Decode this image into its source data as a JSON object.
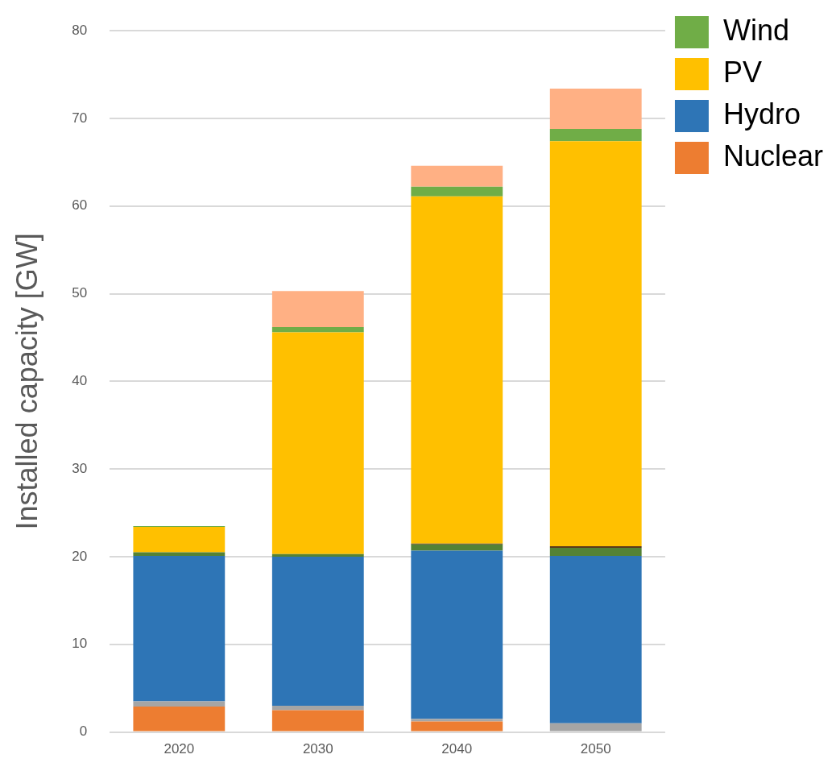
{
  "chart_data": {
    "type": "bar",
    "stacked": true,
    "ylabel": "Installed capacity [GW]",
    "categories": [
      "2020",
      "2030",
      "2040",
      "2050"
    ],
    "series": [
      {
        "name": "Nuclear",
        "color": "#ed7d31",
        "values": [
          2.9,
          2.5,
          1.2,
          0
        ]
      },
      {
        "color": "#a5a5a5",
        "values": [
          0.6,
          0.5,
          0.3,
          1.0
        ]
      },
      {
        "name": "Hydro",
        "color": "#2e75b6",
        "values": [
          16.6,
          17.0,
          19.2,
          19.1
        ]
      },
      {
        "color": "#548235",
        "values": [
          0.4,
          0.3,
          0.7,
          0.9
        ]
      },
      {
        "color": "#5a3a1a",
        "values": [
          0,
          0,
          0.1,
          0.2
        ]
      },
      {
        "name": "PV",
        "color": "#ffc000",
        "values": [
          2.9,
          25.3,
          39.6,
          46.2
        ]
      },
      {
        "name": "Wind",
        "color": "#70ad47",
        "values": [
          0.1,
          0.6,
          1.1,
          1.4
        ]
      },
      {
        "color": "#ffb084",
        "values": [
          0,
          4.1,
          2.4,
          4.6
        ]
      }
    ],
    "ylim": [
      0,
      80
    ],
    "yticks": [
      0,
      10,
      20,
      30,
      40,
      50,
      60,
      70,
      80
    ],
    "grid": "y",
    "legend": "top right"
  }
}
